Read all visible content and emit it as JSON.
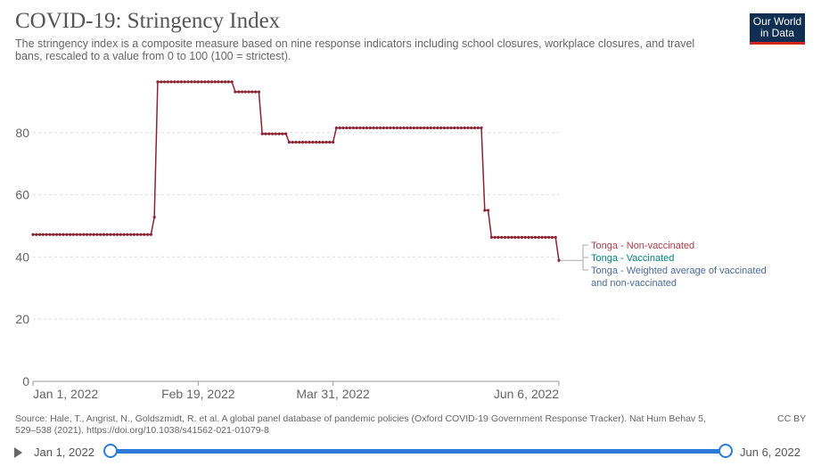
{
  "header": {
    "title": "COVID-19: Stringency Index",
    "subtitle": "The stringency index is a composite measure based on nine response indicators including school closures, workplace closures, and travel bans, rescaled to a value from 0 to 100 (100 = strictest).",
    "logo_line1": "Our World",
    "logo_line2": "in Data"
  },
  "chart_data": {
    "type": "line",
    "title": "COVID-19: Stringency Index",
    "xlabel": "",
    "ylabel": "",
    "ylim": [
      0,
      100
    ],
    "yticks": [
      0,
      20,
      40,
      60,
      80
    ],
    "xticks": [
      "Jan 1, 2022",
      "Feb 19, 2022",
      "Mar 31, 2022",
      "Jun 6, 2022"
    ],
    "x_range": [
      "2022-01-01",
      "2022-06-06"
    ],
    "grid": "horizontal dashed",
    "line_color": "#8b2332",
    "series": [
      {
        "name": "Tonga - Non-vaccinated",
        "color": "#8b2332",
        "segments": [
          {
            "from": "2022-01-01",
            "to": "2022-02-05",
            "value": 47.2
          },
          {
            "from": "2022-02-06",
            "to": "2022-02-06",
            "value": 52.8
          },
          {
            "from": "2022-02-07",
            "to": "2022-03-01",
            "value": 96.3
          },
          {
            "from": "2022-03-02",
            "to": "2022-03-09",
            "value": 93.1
          },
          {
            "from": "2022-03-10",
            "to": "2022-03-17",
            "value": 79.6
          },
          {
            "from": "2022-03-18",
            "to": "2022-03-31",
            "value": 76.9
          },
          {
            "from": "2022-04-01",
            "to": "2022-05-14",
            "value": 81.5
          },
          {
            "from": "2022-05-15",
            "to": "2022-05-16",
            "value": 55.0
          },
          {
            "from": "2022-05-17",
            "to": "2022-06-05",
            "value": 46.3
          },
          {
            "from": "2022-06-06",
            "to": "2022-06-06",
            "value": 38.9
          }
        ]
      },
      {
        "name": "Tonga - Vaccinated",
        "color": "#00847e",
        "segments": []
      },
      {
        "name": "Tonga - Weighted average of vaccinated and non-vaccinated",
        "color": "#4c6a9c",
        "segments": []
      }
    ]
  },
  "legend": {
    "items": [
      {
        "label": "Tonga - Non-vaccinated",
        "color": "#b13b4a"
      },
      {
        "label": "Tonga - Vaccinated",
        "color": "#00847e"
      },
      {
        "label": "Tonga - Weighted average of vaccinated and non-vaccinated",
        "color": "#4c6a9c"
      }
    ]
  },
  "footer": {
    "source": "Source: Hale, T., Angrist, N., Goldszmidt, R. et al. A global panel database of pandemic policies (Oxford COVID-19 Government Response Tracker). Nat Hum Behav 5, 529–538 (2021). https://doi.org/10.1038/s41562-021-01079-8",
    "license": "CC BY"
  },
  "timeline": {
    "start_label": "Jan 1, 2022",
    "end_label": "Jun 6, 2022",
    "selected_start_fraction": 0.0,
    "selected_end_fraction": 1.0
  }
}
